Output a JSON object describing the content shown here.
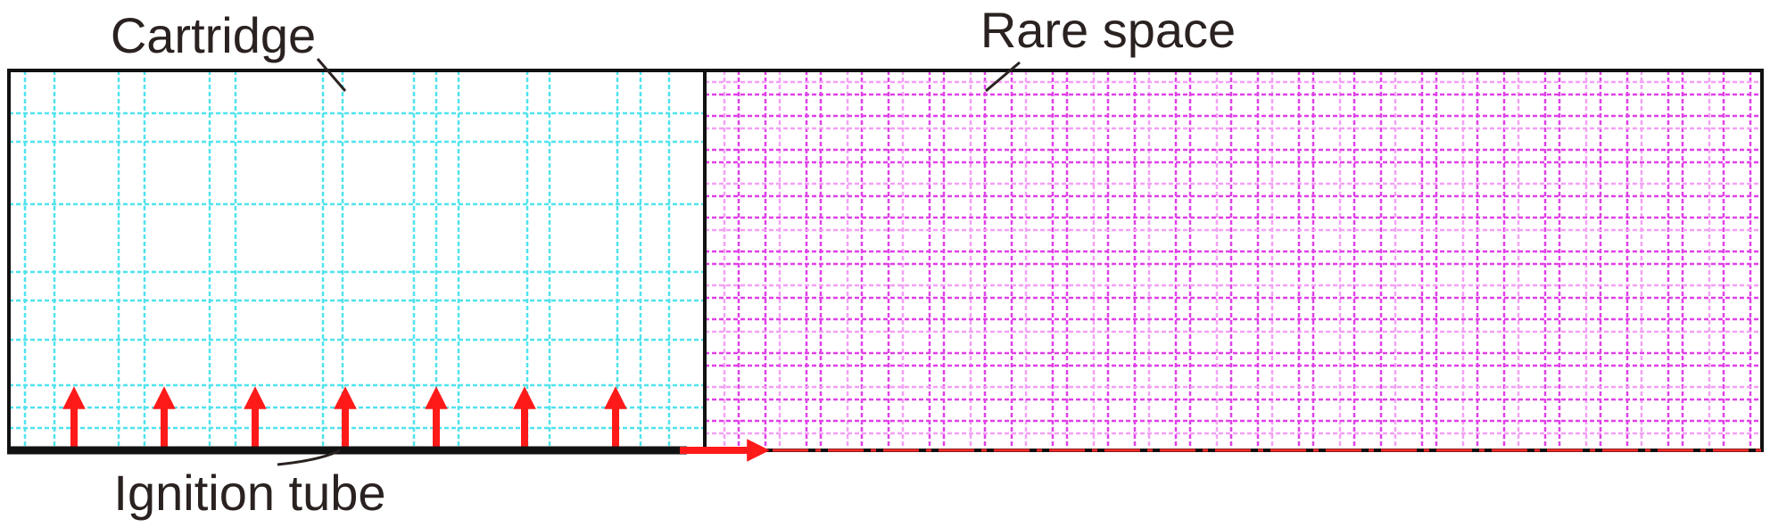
{
  "labels": {
    "cartridge": "Cartridge",
    "rare_space": "Rare space",
    "ignition_tube": "Ignition tube"
  }
}
